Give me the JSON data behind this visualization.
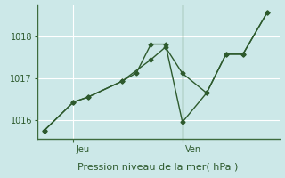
{
  "title": "Pression niveau de la mer( hPa )",
  "bg_color": "#cce8e8",
  "grid_color": "#ffffff",
  "line_color": "#2d5a2d",
  "text_color": "#2d5a2d",
  "spine_color": "#3d6b3d",
  "yticks": [
    1016,
    1017,
    1018
  ],
  "ylim": [
    1015.55,
    1018.75
  ],
  "xlim": [
    0.0,
    10.0
  ],
  "num_xgrid": 10,
  "num_ygrid": 6,
  "xtick_positions": [
    1.5,
    6.0
  ],
  "xtick_labels": [
    "Jeu",
    "Ven"
  ],
  "vline_x": 6.0,
  "series1": [
    [
      0.3,
      1015.75
    ],
    [
      1.5,
      1016.43
    ],
    [
      2.1,
      1016.55
    ],
    [
      3.5,
      1016.93
    ],
    [
      4.1,
      1017.13
    ],
    [
      4.7,
      1017.82
    ],
    [
      5.3,
      1017.82
    ],
    [
      6.0,
      1015.95
    ],
    [
      7.0,
      1016.65
    ],
    [
      7.8,
      1017.58
    ],
    [
      8.5,
      1017.58
    ],
    [
      9.5,
      1018.58
    ]
  ],
  "series2": [
    [
      0.3,
      1015.75
    ],
    [
      1.5,
      1016.43
    ],
    [
      2.1,
      1016.55
    ],
    [
      3.5,
      1016.93
    ],
    [
      4.7,
      1017.45
    ],
    [
      5.3,
      1017.75
    ],
    [
      6.0,
      1017.12
    ],
    [
      7.0,
      1016.65
    ],
    [
      7.8,
      1017.58
    ],
    [
      8.5,
      1017.58
    ],
    [
      9.5,
      1018.58
    ]
  ],
  "marker": "D",
  "markersize": 2.5,
  "linewidth": 1.0,
  "title_fontsize": 8,
  "tick_fontsize": 7
}
